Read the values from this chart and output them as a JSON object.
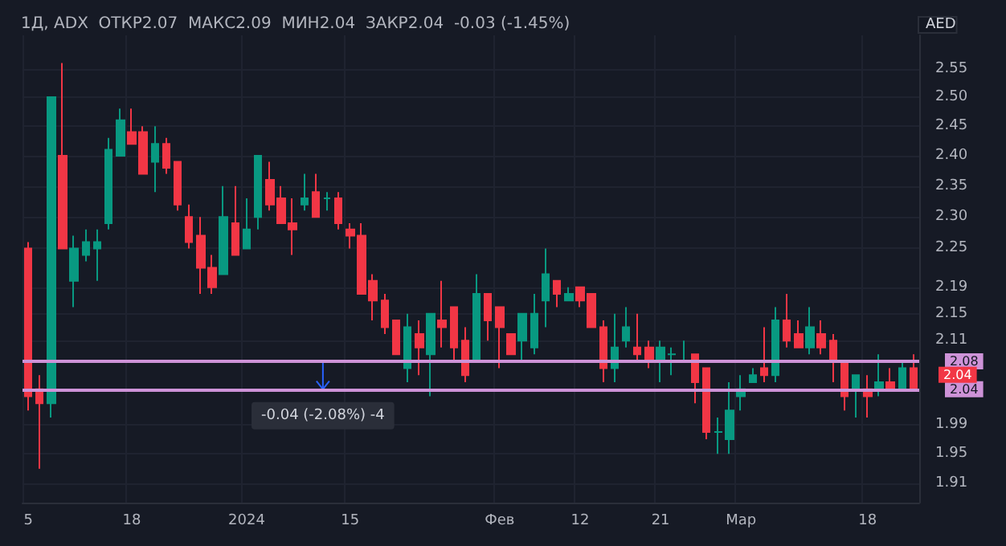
{
  "chart_data": {
    "type": "candlestick",
    "title": "1Д, ADX  ОТКР2.07  МАКС2.09  МИН2.04  ЗАКР2.04  -0.03 (-1.45%)",
    "ylabel": "AED",
    "log": "y",
    "grid": true,
    "categories": [
      "5",
      null,
      null,
      null,
      null,
      null,
      null,
      null,
      null,
      "18",
      null,
      null,
      null,
      null,
      null,
      null,
      null,
      null,
      null,
      "2024",
      null,
      null,
      null,
      null,
      null,
      null,
      null,
      null,
      "15",
      null,
      null,
      null,
      null,
      null,
      null,
      null,
      null,
      null,
      null,
      null,
      null,
      "Фев",
      null,
      null,
      null,
      null,
      null,
      null,
      "12",
      null,
      null,
      null,
      null,
      null,
      null,
      "21",
      null,
      null,
      null,
      null,
      null,
      null,
      "Мар",
      null,
      null,
      null,
      null,
      null,
      null,
      null,
      null,
      null,
      null,
      "18",
      null,
      null,
      null,
      null
    ],
    "ohlc": [
      [
        2.25,
        2.26,
        2.01,
        2.03
      ],
      [
        2.04,
        2.06,
        1.93,
        2.02
      ],
      [
        2.02,
        2.5,
        2.0,
        2.5
      ],
      [
        2.4,
        2.56,
        2.25,
        2.25
      ],
      [
        2.2,
        2.27,
        2.16,
        2.25
      ],
      [
        2.24,
        2.28,
        2.23,
        2.26
      ],
      [
        2.25,
        2.28,
        2.2,
        2.26
      ],
      [
        2.29,
        2.43,
        2.28,
        2.41
      ],
      [
        2.4,
        2.48,
        2.4,
        2.46
      ],
      [
        2.44,
        2.48,
        2.42,
        2.42
      ],
      [
        2.44,
        2.45,
        2.37,
        2.37
      ],
      [
        2.39,
        2.45,
        2.34,
        2.42
      ],
      [
        2.42,
        2.43,
        2.37,
        2.38
      ],
      [
        2.39,
        2.39,
        2.31,
        2.32
      ],
      [
        2.3,
        2.32,
        2.25,
        2.26
      ],
      [
        2.27,
        2.3,
        2.18,
        2.22
      ],
      [
        2.22,
        2.24,
        2.18,
        2.19
      ],
      [
        2.21,
        2.35,
        2.21,
        2.3
      ],
      [
        2.29,
        2.35,
        2.24,
        2.24
      ],
      [
        2.25,
        2.33,
        2.25,
        2.28
      ],
      [
        2.3,
        2.4,
        2.28,
        2.4
      ],
      [
        2.36,
        2.39,
        2.31,
        2.32
      ],
      [
        2.33,
        2.35,
        2.29,
        2.29
      ],
      [
        2.29,
        2.33,
        2.24,
        2.28
      ],
      [
        2.32,
        2.37,
        2.31,
        2.33
      ],
      [
        2.34,
        2.37,
        2.3,
        2.3
      ],
      [
        2.33,
        2.34,
        2.31,
        2.33
      ],
      [
        2.33,
        2.34,
        2.28,
        2.29
      ],
      [
        2.28,
        2.29,
        2.25,
        2.27
      ],
      [
        2.27,
        2.29,
        2.18,
        2.18
      ],
      [
        2.2,
        2.21,
        2.14,
        2.17
      ],
      [
        2.17,
        2.18,
        2.12,
        2.13
      ],
      [
        2.14,
        2.14,
        2.09,
        2.09
      ],
      [
        2.07,
        2.15,
        2.05,
        2.13
      ],
      [
        2.12,
        2.14,
        2.06,
        2.1
      ],
      [
        2.09,
        2.15,
        2.03,
        2.15
      ],
      [
        2.14,
        2.2,
        2.1,
        2.13
      ],
      [
        2.16,
        2.16,
        2.08,
        2.1
      ],
      [
        2.11,
        2.13,
        2.05,
        2.06
      ],
      [
        2.08,
        2.21,
        2.08,
        2.18
      ],
      [
        2.18,
        2.18,
        2.11,
        2.14
      ],
      [
        2.16,
        2.16,
        2.07,
        2.13
      ],
      [
        2.12,
        2.12,
        2.09,
        2.09
      ],
      [
        2.11,
        2.15,
        2.08,
        2.15
      ],
      [
        2.1,
        2.18,
        2.09,
        2.15
      ],
      [
        2.17,
        2.25,
        2.13,
        2.21
      ],
      [
        2.2,
        2.2,
        2.16,
        2.18
      ],
      [
        2.17,
        2.19,
        2.17,
        2.18
      ],
      [
        2.19,
        2.19,
        2.16,
        2.17
      ],
      [
        2.18,
        2.18,
        2.13,
        2.13
      ],
      [
        2.13,
        2.14,
        2.05,
        2.07
      ],
      [
        2.07,
        2.15,
        2.05,
        2.1
      ],
      [
        2.11,
        2.16,
        2.1,
        2.13
      ],
      [
        2.1,
        2.15,
        2.08,
        2.09
      ],
      [
        2.1,
        2.11,
        2.07,
        2.08
      ],
      [
        2.08,
        2.11,
        2.05,
        2.1
      ],
      [
        2.09,
        2.1,
        2.06,
        2.09
      ],
      [
        2.08,
        2.11,
        2.08,
        2.08
      ],
      [
        2.09,
        2.09,
        2.02,
        2.05
      ],
      [
        2.07,
        2.07,
        1.97,
        1.98
      ],
      [
        1.98,
        2.0,
        1.95,
        1.98
      ],
      [
        1.97,
        2.05,
        1.95,
        2.01
      ],
      [
        2.03,
        2.06,
        2.01,
        2.04
      ],
      [
        2.05,
        2.07,
        2.05,
        2.06
      ],
      [
        2.07,
        2.13,
        2.05,
        2.06
      ],
      [
        2.06,
        2.16,
        2.05,
        2.14
      ],
      [
        2.14,
        2.18,
        2.1,
        2.11
      ],
      [
        2.12,
        2.14,
        2.1,
        2.1
      ],
      [
        2.1,
        2.16,
        2.09,
        2.13
      ],
      [
        2.12,
        2.14,
        2.09,
        2.1
      ],
      [
        2.11,
        2.12,
        2.05,
        2.08
      ],
      [
        2.08,
        2.08,
        2.01,
        2.03
      ],
      [
        2.04,
        2.06,
        2.0,
        2.06
      ],
      [
        2.04,
        2.06,
        2.0,
        2.03
      ],
      [
        2.04,
        2.09,
        2.03,
        2.05
      ],
      [
        2.05,
        2.07,
        2.04,
        2.04
      ],
      [
        2.04,
        2.08,
        2.04,
        2.07
      ],
      [
        2.07,
        2.09,
        2.04,
        2.04
      ]
    ],
    "colors": [
      "#f23645",
      "#f23645",
      "#089981",
      "#f23645",
      "#089981",
      "#089981",
      "#089981",
      "#089981",
      "#089981",
      "#f23645",
      "#f23645",
      "#089981",
      "#f23645",
      "#f23645",
      "#f23645",
      "#f23645",
      "#f23645",
      "#089981",
      "#f23645",
      "#089981",
      "#089981",
      "#f23645",
      "#f23645",
      "#f23645",
      "#089981",
      "#f23645",
      "#089981",
      "#f23645",
      "#f23645",
      "#f23645",
      "#f23645",
      "#f23645",
      "#f23645",
      "#089981",
      "#f23645",
      "#089981",
      "#f23645",
      "#f23645",
      "#f23645",
      "#089981",
      "#f23645",
      "#f23645",
      "#f23645",
      "#089981",
      "#089981",
      "#089981",
      "#f23645",
      "#089981",
      "#f23645",
      "#f23645",
      "#f23645",
      "#089981",
      "#089981",
      "#f23645",
      "#f23645",
      "#089981",
      "#089981",
      "#089981",
      "#f23645",
      "#f23645",
      "#089981",
      "#089981",
      "#089981",
      "#089981",
      "#f23645",
      "#089981",
      "#f23645",
      "#f23645",
      "#089981",
      "#f23645",
      "#f23645",
      "#f23645",
      "#089981",
      "#f23645",
      "#089981",
      "#f23645",
      "#089981",
      "#f23645"
    ],
    "ylim": [
      1.885,
      2.61
    ],
    "yticks": [
      1.91,
      1.95,
      1.99,
      2.11,
      2.15,
      2.19,
      2.25,
      {
        "value": 2.3,
        "label": "2.30"
      },
      2.35,
      {
        "value": 2.4,
        "label": "2.40"
      },
      2.45,
      {
        "value": 2.5,
        "label": "2.50"
      },
      2.55
    ],
    "ref_lines": [
      {
        "axis": "y",
        "value": 2.08,
        "label": "2.08",
        "color": "#ce93d8"
      },
      {
        "axis": "y",
        "value": 2.04,
        "label": "2.04",
        "color": "#ce93d8"
      }
    ],
    "annotations": [
      "2.04",
      "-0.04 (-2.08%) -4"
    ]
  }
}
